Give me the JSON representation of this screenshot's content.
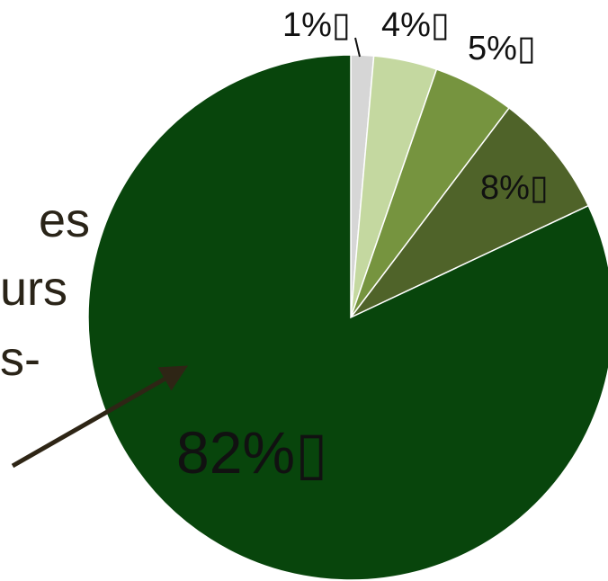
{
  "chart_data": {
    "type": "pie",
    "categories": [
      "82%",
      "1%",
      "4%",
      "5%",
      "8%"
    ],
    "values": [
      82,
      1.4,
      3.9,
      5.0,
      7.7
    ],
    "labels": [
      "1%▯",
      "4%▯",
      "5%▯",
      "8%▯",
      "82%▯"
    ],
    "colors": [
      "#08450c",
      "#d6d6d6",
      "#c4d8a0",
      "#76943f",
      "#4f6329"
    ],
    "start_angle_deg": 0,
    "direction": "clockwise",
    "title": ""
  },
  "left_text": [
    "es",
    "urs",
    "s-"
  ],
  "colors": {
    "text": "#2a2418",
    "arrow": "#2e2515",
    "label": "#111111"
  }
}
